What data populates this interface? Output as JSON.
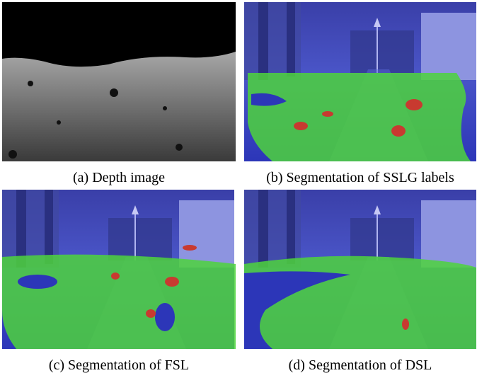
{
  "figure": {
    "panels": [
      {
        "caption": "(a) Depth image"
      },
      {
        "caption": "(b) Segmentation of SSLG labels"
      },
      {
        "caption": "(c) Segmentation of FSL"
      },
      {
        "caption": "(d) Segmentation of DSL"
      }
    ]
  }
}
